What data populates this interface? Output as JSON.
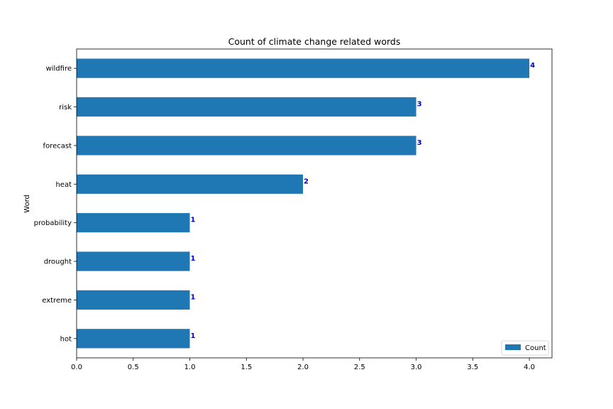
{
  "chart_data": {
    "type": "bar",
    "orientation": "horizontal",
    "title": "Count of climate change related words",
    "xlabel": "",
    "ylabel": "Word",
    "categories": [
      "wildfire",
      "risk",
      "forecast",
      "heat",
      "probability",
      "drought",
      "extreme",
      "hot"
    ],
    "series": [
      {
        "name": "Count",
        "values": [
          4,
          3,
          3,
          2,
          1,
          1,
          1,
          1
        ]
      }
    ],
    "data_labels": [
      "4",
      "3",
      "3",
      "2",
      "1",
      "1",
      "1",
      "1"
    ],
    "xlim": [
      0,
      4.2
    ],
    "xticks": [
      "0.0",
      "0.5",
      "1.0",
      "1.5",
      "2.0",
      "2.5",
      "3.0",
      "3.5",
      "4.0"
    ],
    "xtick_values": [
      0,
      0.5,
      1,
      1.5,
      2,
      2.5,
      3,
      3.5,
      4
    ],
    "grid": false,
    "legend_position": "lower-right",
    "colors": {
      "bar": "#1f77b4",
      "data_label": "#0000cc",
      "axis": "#000000"
    }
  }
}
